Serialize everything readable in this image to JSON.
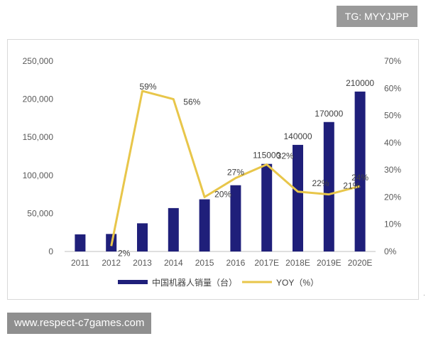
{
  "header": {
    "badge": "TG: MYYJJPP"
  },
  "footer": {
    "banner": "www.respect-c7games.com"
  },
  "colors": {
    "bar": "#1f1f7a",
    "line": "#e8c64a",
    "axis": "#bfbfbf"
  },
  "chart_data": {
    "type": "bar",
    "categories": [
      "2011",
      "2012",
      "2013",
      "2014",
      "2015",
      "2016",
      "2017E",
      "2018E",
      "2019E",
      "2020E"
    ],
    "series": [
      {
        "name": "中国机器人销量（台）",
        "type": "bar",
        "axis": "left",
        "values": [
          22500,
          23000,
          37000,
          57000,
          68500,
          87000,
          115000,
          140000,
          170000,
          210000
        ],
        "labels": [
          "",
          "",
          "",
          "",
          "",
          "",
          "115000",
          "140000",
          "170000",
          "210000"
        ]
      },
      {
        "name": "YOY（%）",
        "type": "line",
        "axis": "right",
        "values": [
          null,
          2,
          59,
          56,
          20,
          27,
          32,
          22,
          21,
          24
        ],
        "labels": [
          "",
          "2%",
          "59%",
          "56%",
          "20%",
          "27%",
          "32%",
          "22%",
          "21%",
          "24%"
        ]
      }
    ],
    "y_left": {
      "range": [
        0,
        250000
      ],
      "ticks": [
        "0",
        "50,000",
        "100,000",
        "150,000",
        "200,000",
        "250,000"
      ]
    },
    "y_right": {
      "range": [
        0,
        70
      ],
      "ticks": [
        "0%",
        "10%",
        "20%",
        "30%",
        "40%",
        "50%",
        "60%",
        "70%"
      ]
    },
    "grid": false,
    "legend_position": "bottom",
    "title": "",
    "xlabel": "",
    "ylabel": ""
  }
}
